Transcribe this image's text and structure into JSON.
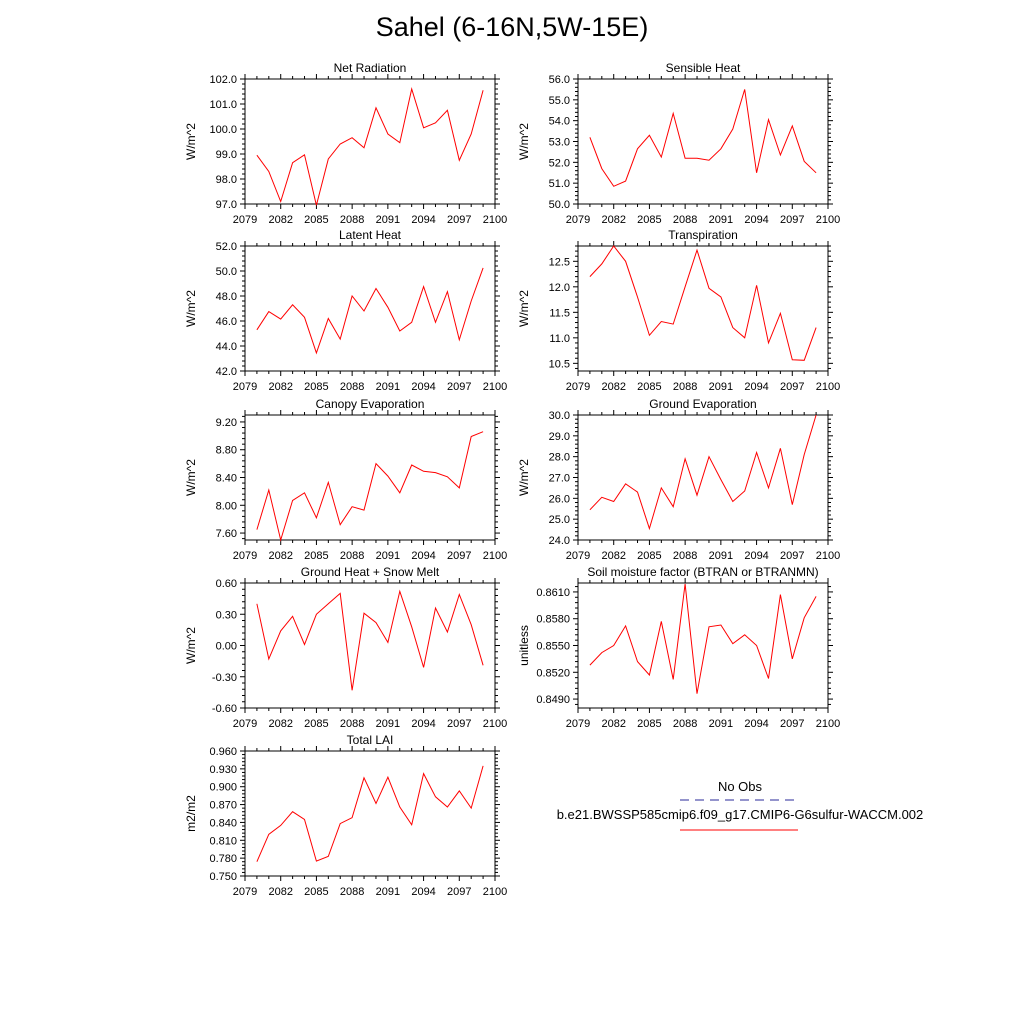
{
  "title": "Sahel (6-16N,5W-15E)",
  "legend": {
    "obs_label": "No Obs",
    "obs_color": "#2a2a9a",
    "model_label": "b.e21.BWSSP585cmip6.f09_g17.CMIP6-G6sulfur-WACCM.002",
    "model_color": "#ff0000"
  },
  "chart_data": [
    {
      "type": "line",
      "title": "Net Radiation",
      "ylabel": "W/m^2",
      "xlim": [
        2079,
        2100
      ],
      "ylim": [
        97.0,
        102.0
      ],
      "xticks": [
        2079,
        2082,
        2085,
        2088,
        2091,
        2094,
        2097,
        2100
      ],
      "yticks": [
        "97.0",
        "98.0",
        "99.0",
        "100.0",
        "101.0",
        "102.0"
      ],
      "x": [
        2080,
        2081,
        2082,
        2083,
        2084,
        2085,
        2086,
        2087,
        2088,
        2089,
        2090,
        2091,
        2092,
        2093,
        2094,
        2095,
        2096,
        2097,
        2098,
        2099
      ],
      "values": [
        98.95,
        98.3,
        97.1,
        98.65,
        98.97,
        96.95,
        98.8,
        99.4,
        99.65,
        99.25,
        100.85,
        99.8,
        99.45,
        101.6,
        100.05,
        100.25,
        100.75,
        98.75,
        99.8,
        101.55
      ],
      "color": "#ff0000"
    },
    {
      "type": "line",
      "title": "Sensible Heat",
      "ylabel": "W/m^2",
      "xlim": [
        2079,
        2100
      ],
      "ylim": [
        50.0,
        56.0
      ],
      "xticks": [
        2079,
        2082,
        2085,
        2088,
        2091,
        2094,
        2097,
        2100
      ],
      "yticks": [
        "50.0",
        "51.0",
        "52.0",
        "53.0",
        "54.0",
        "55.0",
        "56.0"
      ],
      "x": [
        2080,
        2081,
        2082,
        2083,
        2084,
        2085,
        2086,
        2087,
        2088,
        2089,
        2090,
        2091,
        2092,
        2093,
        2094,
        2095,
        2096,
        2097,
        2098,
        2099
      ],
      "values": [
        53.2,
        51.7,
        50.85,
        51.1,
        52.65,
        53.3,
        52.25,
        54.35,
        52.2,
        52.2,
        52.1,
        52.65,
        53.6,
        55.5,
        51.5,
        54.05,
        52.35,
        53.75,
        52.05,
        51.5
      ],
      "color": "#ff0000"
    },
    {
      "type": "line",
      "title": "Latent Heat",
      "ylabel": "W/m^2",
      "xlim": [
        2079,
        2100
      ],
      "ylim": [
        42.0,
        52.0
      ],
      "xticks": [
        2079,
        2082,
        2085,
        2088,
        2091,
        2094,
        2097,
        2100
      ],
      "yticks": [
        "42.0",
        "44.0",
        "46.0",
        "48.0",
        "50.0",
        "52.0"
      ],
      "x": [
        2080,
        2081,
        2082,
        2083,
        2084,
        2085,
        2086,
        2087,
        2088,
        2089,
        2090,
        2091,
        2092,
        2093,
        2094,
        2095,
        2096,
        2097,
        2098,
        2099
      ],
      "values": [
        45.3,
        46.75,
        46.15,
        47.3,
        46.3,
        43.45,
        46.2,
        44.55,
        48.0,
        46.8,
        48.6,
        47.1,
        45.2,
        45.9,
        48.75,
        45.9,
        48.35,
        44.5,
        47.6,
        50.25
      ],
      "color": "#ff0000"
    },
    {
      "type": "line",
      "title": "Transpiration",
      "ylabel": "W/m^2",
      "xlim": [
        2079,
        2100
      ],
      "ylim": [
        10.35,
        12.8
      ],
      "xticks": [
        2079,
        2082,
        2085,
        2088,
        2091,
        2094,
        2097,
        2100
      ],
      "yticks": [
        "10.5",
        "11.0",
        "11.5",
        "12.0",
        "12.5"
      ],
      "x": [
        2080,
        2081,
        2082,
        2083,
        2084,
        2085,
        2086,
        2087,
        2088,
        2089,
        2090,
        2091,
        2092,
        2093,
        2094,
        2095,
        2096,
        2097,
        2098,
        2099
      ],
      "values": [
        12.2,
        12.45,
        12.8,
        12.5,
        11.8,
        11.05,
        11.32,
        11.27,
        12.0,
        12.72,
        11.97,
        11.8,
        11.2,
        11.0,
        12.03,
        10.9,
        11.48,
        10.57,
        10.56,
        11.2
      ],
      "color": "#ff0000"
    },
    {
      "type": "line",
      "title": "Canopy Evaporation",
      "ylabel": "W/m^2",
      "xlim": [
        2079,
        2100
      ],
      "ylim": [
        7.5,
        9.3
      ],
      "xticks": [
        2079,
        2082,
        2085,
        2088,
        2091,
        2094,
        2097,
        2100
      ],
      "yticks": [
        "7.60",
        "8.00",
        "8.40",
        "8.80",
        "9.20"
      ],
      "x": [
        2080,
        2081,
        2082,
        2083,
        2084,
        2085,
        2086,
        2087,
        2088,
        2089,
        2090,
        2091,
        2092,
        2093,
        2094,
        2095,
        2096,
        2097,
        2098,
        2099
      ],
      "values": [
        7.65,
        8.22,
        7.5,
        8.07,
        8.18,
        7.82,
        8.33,
        7.72,
        7.98,
        7.93,
        8.6,
        8.42,
        8.18,
        8.58,
        8.49,
        8.47,
        8.41,
        8.25,
        8.99,
        9.06
      ],
      "color": "#ff0000"
    },
    {
      "type": "line",
      "title": "Ground Evaporation",
      "ylabel": "W/m^2",
      "xlim": [
        2079,
        2100
      ],
      "ylim": [
        24.0,
        30.0
      ],
      "xticks": [
        2079,
        2082,
        2085,
        2088,
        2091,
        2094,
        2097,
        2100
      ],
      "yticks": [
        "24.0",
        "25.0",
        "26.0",
        "27.0",
        "28.0",
        "29.0",
        "30.0"
      ],
      "x": [
        2080,
        2081,
        2082,
        2083,
        2084,
        2085,
        2086,
        2087,
        2088,
        2089,
        2090,
        2091,
        2092,
        2093,
        2094,
        2095,
        2096,
        2097,
        2098,
        2099
      ],
      "values": [
        25.45,
        26.05,
        25.85,
        26.7,
        26.3,
        24.55,
        26.5,
        25.6,
        27.9,
        26.15,
        28.0,
        26.9,
        25.85,
        26.35,
        28.2,
        26.5,
        28.4,
        25.7,
        28.1,
        30.0
      ],
      "color": "#ff0000"
    },
    {
      "type": "line",
      "title": "Ground Heat + Snow Melt",
      "ylabel": "W/m^2",
      "xlim": [
        2079,
        2100
      ],
      "ylim": [
        -0.6,
        0.6
      ],
      "xticks": [
        2079,
        2082,
        2085,
        2088,
        2091,
        2094,
        2097,
        2100
      ],
      "yticks": [
        "-0.60",
        "-0.30",
        "0.00",
        "0.30",
        "0.60"
      ],
      "x": [
        2080,
        2081,
        2082,
        2083,
        2084,
        2085,
        2086,
        2087,
        2088,
        2089,
        2090,
        2091,
        2092,
        2093,
        2094,
        2095,
        2096,
        2097,
        2098,
        2099
      ],
      "values": [
        0.4,
        -0.13,
        0.14,
        0.28,
        0.01,
        0.3,
        0.4,
        0.5,
        -0.43,
        0.31,
        0.22,
        0.03,
        0.52,
        0.18,
        -0.21,
        0.36,
        0.13,
        0.49,
        0.2,
        -0.19
      ],
      "color": "#ff0000"
    },
    {
      "type": "line",
      "title": "Soil moisture factor (BTRAN or BTRANMN)",
      "ylabel": "unitless",
      "xlim": [
        2079,
        2100
      ],
      "ylim": [
        0.848,
        0.862
      ],
      "xticks": [
        2079,
        2082,
        2085,
        2088,
        2091,
        2094,
        2097,
        2100
      ],
      "yticks": [
        "0.8490",
        "0.8520",
        "0.8550",
        "0.8580",
        "0.8610"
      ],
      "x": [
        2080,
        2081,
        2082,
        2083,
        2084,
        2085,
        2086,
        2087,
        2088,
        2089,
        2090,
        2091,
        2092,
        2093,
        2094,
        2095,
        2096,
        2097,
        2098,
        2099
      ],
      "values": [
        0.8528,
        0.8542,
        0.855,
        0.8572,
        0.8532,
        0.8517,
        0.8577,
        0.8512,
        0.8619,
        0.8496,
        0.8571,
        0.8573,
        0.8552,
        0.8562,
        0.855,
        0.8513,
        0.8607,
        0.8535,
        0.8581,
        0.8605
      ],
      "color": "#ff0000"
    },
    {
      "type": "line",
      "title": "Total LAI",
      "ylabel": "m2/m2",
      "xlim": [
        2079,
        2100
      ],
      "ylim": [
        0.75,
        0.96
      ],
      "xticks": [
        2079,
        2082,
        2085,
        2088,
        2091,
        2094,
        2097,
        2100
      ],
      "yticks": [
        "0.750",
        "0.780",
        "0.810",
        "0.840",
        "0.870",
        "0.900",
        "0.930",
        "0.960"
      ],
      "x": [
        2080,
        2081,
        2082,
        2083,
        2084,
        2085,
        2086,
        2087,
        2088,
        2089,
        2090,
        2091,
        2092,
        2093,
        2094,
        2095,
        2096,
        2097,
        2098,
        2099
      ],
      "values": [
        0.774,
        0.82,
        0.835,
        0.858,
        0.845,
        0.775,
        0.783,
        0.838,
        0.848,
        0.915,
        0.872,
        0.916,
        0.866,
        0.836,
        0.922,
        0.883,
        0.866,
        0.893,
        0.864,
        0.935
      ],
      "color": "#ff0000"
    }
  ]
}
